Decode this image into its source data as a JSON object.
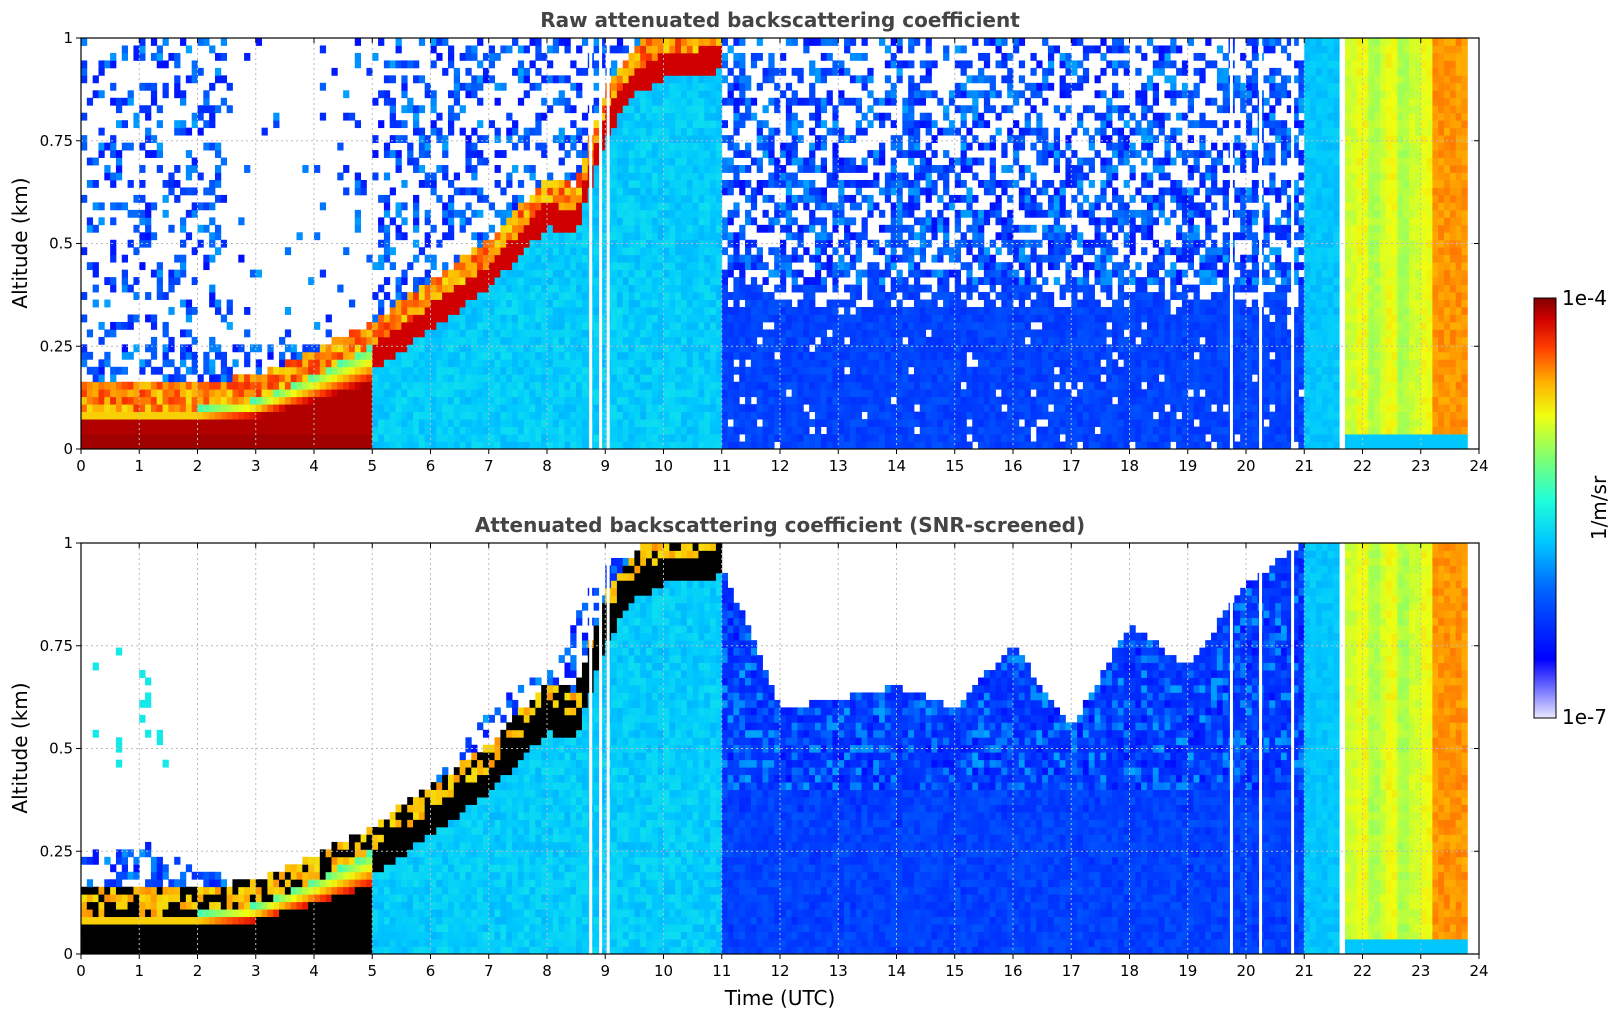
{
  "chart_data": [
    {
      "type": "heatmap",
      "title": "Raw attenuated backscattering coefficient",
      "xlabel": "",
      "ylabel": "Altitude (km)",
      "xlim": [
        0,
        24
      ],
      "ylim": [
        0,
        1
      ],
      "xticks": [
        "0",
        "1",
        "2",
        "3",
        "4",
        "5",
        "6",
        "7",
        "8",
        "9",
        "10",
        "11",
        "12",
        "13",
        "14",
        "15",
        "16",
        "17",
        "18",
        "19",
        "20",
        "21",
        "22",
        "23",
        "24"
      ],
      "yticks": [
        "0",
        "0.25",
        "0.5",
        "0.75",
        "1"
      ],
      "grid": true,
      "screened": false,
      "boundary_layer_top_km": {
        "x": [
          0,
          1,
          2,
          3,
          4,
          5,
          6,
          7,
          8,
          8.5,
          9,
          9.5,
          10,
          11
        ],
        "y": [
          0.1,
          0.1,
          0.1,
          0.12,
          0.18,
          0.25,
          0.35,
          0.45,
          0.6,
          0.58,
          0.82,
          0.92,
          0.96,
          0.98
        ]
      },
      "white_gap_columns_utc": [
        8.75,
        8.92,
        9.05,
        19.75,
        20.25,
        20.8
      ]
    },
    {
      "type": "heatmap",
      "title": "Attenuated backscattering coefficient (SNR-screened)",
      "xlabel": "Time (UTC)",
      "ylabel": "Altitude (km)",
      "xlim": [
        0,
        24
      ],
      "ylim": [
        0,
        1
      ],
      "xticks": [
        "0",
        "1",
        "2",
        "3",
        "4",
        "5",
        "6",
        "7",
        "8",
        "9",
        "10",
        "11",
        "12",
        "13",
        "14",
        "15",
        "16",
        "17",
        "18",
        "19",
        "20",
        "21",
        "22",
        "23",
        "24"
      ],
      "yticks": [
        "0",
        "0.25",
        "0.5",
        "0.75",
        "1"
      ],
      "grid": true,
      "screened": true,
      "signal_top_km": {
        "x": [
          0,
          1,
          2,
          3,
          4,
          5,
          6,
          7,
          8,
          9,
          10,
          11,
          12,
          13,
          14,
          15,
          16,
          17,
          18,
          19,
          20,
          21
        ],
        "y": [
          0.24,
          0.28,
          0.2,
          0.18,
          0.24,
          0.3,
          0.4,
          0.6,
          0.7,
          0.95,
          1.0,
          0.95,
          0.6,
          0.62,
          0.65,
          0.6,
          0.75,
          0.55,
          0.8,
          0.7,
          0.9,
          1.0
        ]
      }
    }
  ],
  "colorbar": {
    "label": "1/m/sr",
    "max_label": "1e-4",
    "min_label": "1e-7",
    "scale": "log",
    "range": [
      1e-07,
      0.0001
    ],
    "colormap": "jet"
  }
}
